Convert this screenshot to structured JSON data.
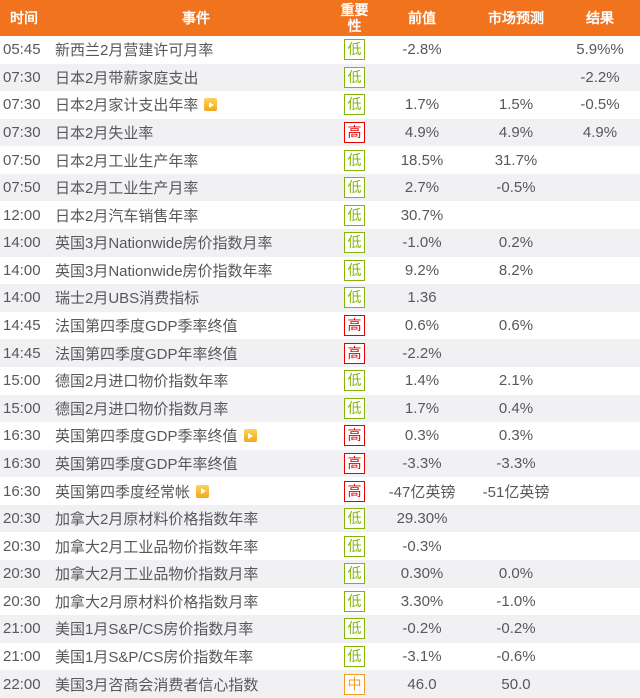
{
  "table": {
    "columns": [
      {
        "key": "time",
        "label": "时间"
      },
      {
        "key": "event",
        "label": "事件"
      },
      {
        "key": "importance",
        "label": "重要性"
      },
      {
        "key": "previous",
        "label": "前值"
      },
      {
        "key": "forecast",
        "label": "市场预测"
      },
      {
        "key": "result",
        "label": "结果"
      }
    ],
    "rows": [
      {
        "time": "05:45",
        "event": "新西兰2月营建许可月率",
        "video": false,
        "importance": "低",
        "previous": "-2.8%",
        "forecast": "",
        "result": "5.9%%"
      },
      {
        "time": "07:30",
        "event": "日本2月带薪家庭支出",
        "video": false,
        "importance": "低",
        "previous": "",
        "forecast": "",
        "result": "-2.2%"
      },
      {
        "time": "07:30",
        "event": "日本2月家计支出年率",
        "video": true,
        "importance": "低",
        "previous": "1.7%",
        "forecast": "1.5%",
        "result": "-0.5%"
      },
      {
        "time": "07:30",
        "event": "日本2月失业率",
        "video": false,
        "importance": "高",
        "previous": "4.9%",
        "forecast": "4.9%",
        "result": "4.9%"
      },
      {
        "time": "07:50",
        "event": "日本2月工业生产年率",
        "video": false,
        "importance": "低",
        "previous": "18.5%",
        "forecast": "31.7%",
        "result": ""
      },
      {
        "time": "07:50",
        "event": "日本2月工业生产月率",
        "video": false,
        "importance": "低",
        "previous": "2.7%",
        "forecast": "-0.5%",
        "result": ""
      },
      {
        "time": "12:00",
        "event": "日本2月汽车销售年率",
        "video": false,
        "importance": "低",
        "previous": "30.7%",
        "forecast": "",
        "result": ""
      },
      {
        "time": "14:00",
        "event": "英国3月Nationwide房价指数月率",
        "video": false,
        "importance": "低",
        "previous": "-1.0%",
        "forecast": "0.2%",
        "result": ""
      },
      {
        "time": "14:00",
        "event": "英国3月Nationwide房价指数年率",
        "video": false,
        "importance": "低",
        "previous": "9.2%",
        "forecast": "8.2%",
        "result": ""
      },
      {
        "time": "14:00",
        "event": "瑞士2月UBS消费指标",
        "video": false,
        "importance": "低",
        "previous": "1.36",
        "forecast": "",
        "result": ""
      },
      {
        "time": "14:45",
        "event": "法国第四季度GDP季率终值",
        "video": false,
        "importance": "高",
        "previous": "0.6%",
        "forecast": "0.6%",
        "result": ""
      },
      {
        "time": "14:45",
        "event": "法国第四季度GDP年率终值",
        "video": false,
        "importance": "高",
        "previous": "-2.2%",
        "forecast": "",
        "result": ""
      },
      {
        "time": "15:00",
        "event": "德国2月进口物价指数年率",
        "video": false,
        "importance": "低",
        "previous": "1.4%",
        "forecast": "2.1%",
        "result": ""
      },
      {
        "time": "15:00",
        "event": "德国2月进口物价指数月率",
        "video": false,
        "importance": "低",
        "previous": "1.7%",
        "forecast": "0.4%",
        "result": ""
      },
      {
        "time": "16:30",
        "event": "英国第四季度GDP季率终值",
        "video": true,
        "importance": "高",
        "previous": "0.3%",
        "forecast": "0.3%",
        "result": ""
      },
      {
        "time": "16:30",
        "event": "英国第四季度GDP年率终值",
        "video": false,
        "importance": "高",
        "previous": "-3.3%",
        "forecast": "-3.3%",
        "result": ""
      },
      {
        "time": "16:30",
        "event": "英国第四季度经常帐",
        "video": true,
        "importance": "高",
        "previous": "-47亿英镑",
        "forecast": "-51亿英镑",
        "result": ""
      },
      {
        "time": "20:30",
        "event": "加拿大2月原材料价格指数年率",
        "video": false,
        "importance": "低",
        "previous": "29.30%",
        "forecast": "",
        "result": ""
      },
      {
        "time": "20:30",
        "event": "加拿大2月工业品物价指数年率",
        "video": false,
        "importance": "低",
        "previous": "-0.3%",
        "forecast": "",
        "result": ""
      },
      {
        "time": "20:30",
        "event": "加拿大2月工业品物价指数月率",
        "video": false,
        "importance": "低",
        "previous": "0.30%",
        "forecast": "0.0%",
        "result": ""
      },
      {
        "time": "20:30",
        "event": "加拿大2月原材料价格指数月率",
        "video": false,
        "importance": "低",
        "previous": "3.30%",
        "forecast": "-1.0%",
        "result": ""
      },
      {
        "time": "21:00",
        "event": "美国1月S&P/CS房价指数月率",
        "video": false,
        "importance": "低",
        "previous": "-0.2%",
        "forecast": "-0.2%",
        "result": ""
      },
      {
        "time": "21:00",
        "event": "美国1月S&P/CS房价指数年率",
        "video": false,
        "importance": "低",
        "previous": "-3.1%",
        "forecast": "-0.6%",
        "result": ""
      },
      {
        "time": "22:00",
        "event": "美国3月咨商会消费者信心指数",
        "video": false,
        "importance": "中",
        "previous": "46.0",
        "forecast": "50.0",
        "result": ""
      }
    ]
  },
  "importance_class_map": {
    "低": "low",
    "高": "high",
    "中": "mid"
  },
  "colors": {
    "header_bg": "#f1731d",
    "row_alt_bg": "#f1f0f2",
    "text": "#58585a",
    "importance_low": "#86b509",
    "importance_high": "#e60000",
    "importance_mid": "#f59a23",
    "video_icon": "#f2a71b",
    "video_icon_light": "#fcd35c"
  }
}
